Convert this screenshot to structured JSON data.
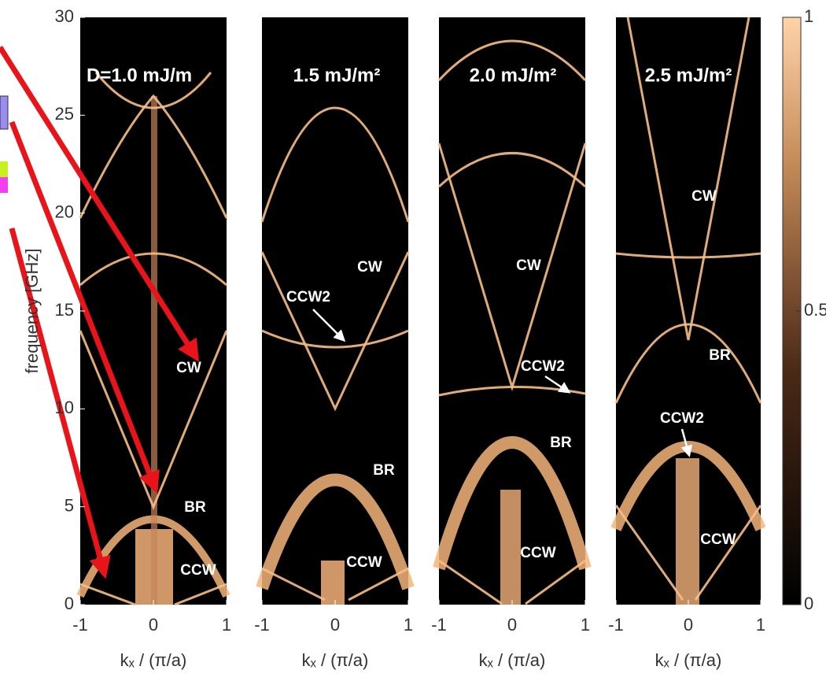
{
  "chart_data": [
    {
      "type": "heatmap",
      "title": "D=1.0 mJ/m",
      "xlabel": "kₓ / (π/a)",
      "ylabel": "frequency [GHz]",
      "xlim": [
        -1,
        1
      ],
      "xticks": [
        -1,
        0,
        1
      ],
      "ylim": [
        0,
        30
      ],
      "yticks": [
        0,
        5,
        10,
        15,
        20,
        25,
        30
      ],
      "annotations": [
        "CW",
        "BR",
        "CCW"
      ]
    },
    {
      "type": "heatmap",
      "title": "1.5 mJ/m²",
      "xlabel": "kₓ / (π/a)",
      "xlim": [
        -1,
        1
      ],
      "xticks": [
        -1,
        0,
        1
      ],
      "ylim": [
        0,
        30
      ],
      "annotations": [
        "CW",
        "CCW2",
        "BR",
        "CCW"
      ]
    },
    {
      "type": "heatmap",
      "title": "2.0 mJ/m²",
      "xlabel": "kₓ / (π/a)",
      "xlim": [
        -1,
        1
      ],
      "xticks": [
        -1,
        0,
        1
      ],
      "ylim": [
        0,
        30
      ],
      "annotations": [
        "CW",
        "CCW2",
        "BR",
        "CCW"
      ]
    },
    {
      "type": "heatmap",
      "title": "2.5 mJ/m²",
      "xlabel": "kₓ / (π/a)",
      "xlim": [
        -1,
        1
      ],
      "xticks": [
        -1,
        0,
        1
      ],
      "ylim": [
        0,
        30
      ],
      "annotations": [
        "CW",
        "BR",
        "CCW2",
        "CCW"
      ]
    }
  ],
  "colorbar": {
    "lim": [
      0,
      1
    ],
    "ticks": [
      0,
      0.5,
      1
    ]
  }
}
